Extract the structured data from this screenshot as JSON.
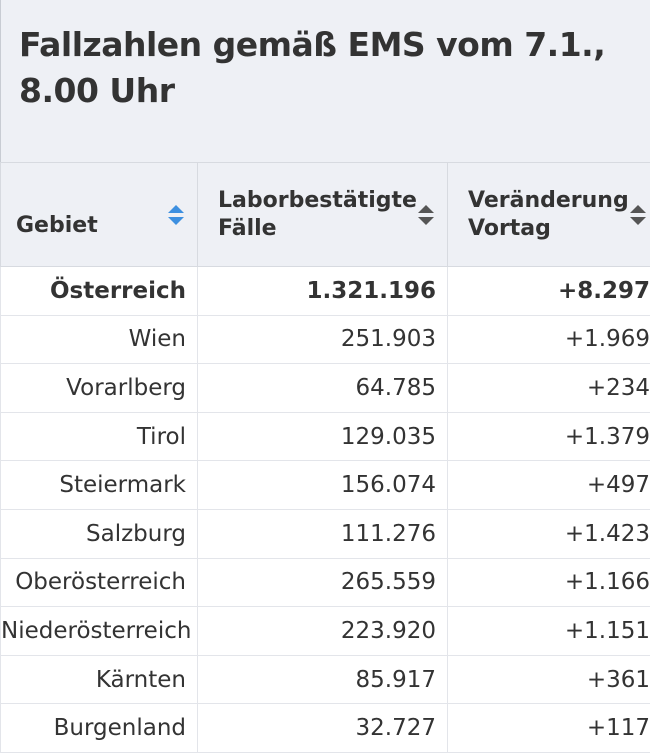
{
  "title": "Fallzahlen gemäß EMS vom 7.1., 8.00 Uhr",
  "table": {
    "headers": [
      "Gebiet",
      "Laborbestätigte Fälle",
      "Veränderung Vortag"
    ],
    "sort_colors": {
      "active": "#3d8fe0",
      "inactive": "#555555"
    },
    "rows": [
      {
        "gebiet": "Österreich",
        "faelle": "1.321.196",
        "veraenderung": "+8.297",
        "bold": true
      },
      {
        "gebiet": "Wien",
        "faelle": "251.903",
        "veraenderung": "+1.969"
      },
      {
        "gebiet": "Vorarlberg",
        "faelle": "64.785",
        "veraenderung": "+234"
      },
      {
        "gebiet": "Tirol",
        "faelle": "129.035",
        "veraenderung": "+1.379"
      },
      {
        "gebiet": "Steiermark",
        "faelle": "156.074",
        "veraenderung": "+497"
      },
      {
        "gebiet": "Salzburg",
        "faelle": "111.276",
        "veraenderung": "+1.423"
      },
      {
        "gebiet": "Oberösterreich",
        "faelle": "265.559",
        "veraenderung": "+1.166"
      },
      {
        "gebiet": "Niederösterreich",
        "faelle": "223.920",
        "veraenderung": "+1.151"
      },
      {
        "gebiet": "Kärnten",
        "faelle": "85.917",
        "veraenderung": "+361"
      },
      {
        "gebiet": "Burgenland",
        "faelle": "32.727",
        "veraenderung": "+117"
      }
    ]
  }
}
